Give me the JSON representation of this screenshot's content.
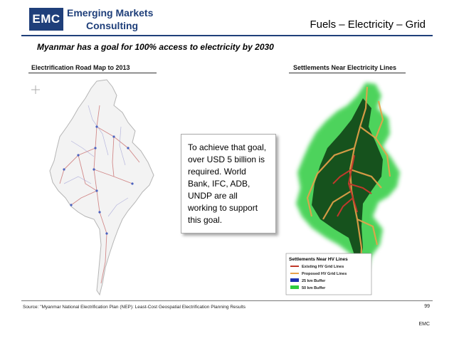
{
  "logo": {
    "abbrev": "EMC",
    "line1": "Emerging Markets",
    "line2": "Consulting"
  },
  "header": {
    "section_title": "Fuels – Electricity – Grid"
  },
  "headline": "Myanmar has a goal for 100% access to electricity by 2030",
  "left_panel": {
    "label": "Electrification Road Map to 2013"
  },
  "right_panel": {
    "label": "Settlements Near Electricity Lines",
    "legend": {
      "title": "Settlements Near HV Lines",
      "items": [
        "Existing HV Grid Lines",
        "Proposed HV Grid Lines",
        "25 km Buffer",
        "50 km Buffer"
      ],
      "colors": [
        "#c0392b",
        "#e8a24a",
        "#1b2fb0",
        "#2ecc40"
      ]
    }
  },
  "callout": {
    "text": "To achieve that goal, over USD 5 billion is required. World Bank, IFC, ADB, UNDP are all working to support this goal."
  },
  "footer": {
    "source": "Source: \"Myanmar National Electrification Plan (NEP): Least-Cost Geospatial Electrification Planning Results",
    "page_number": "99",
    "brand": "EMC"
  },
  "colors": {
    "brand_blue": "#1f3f7a",
    "buffer_green": "#2ecc40",
    "grid_red": "#c0392b"
  }
}
